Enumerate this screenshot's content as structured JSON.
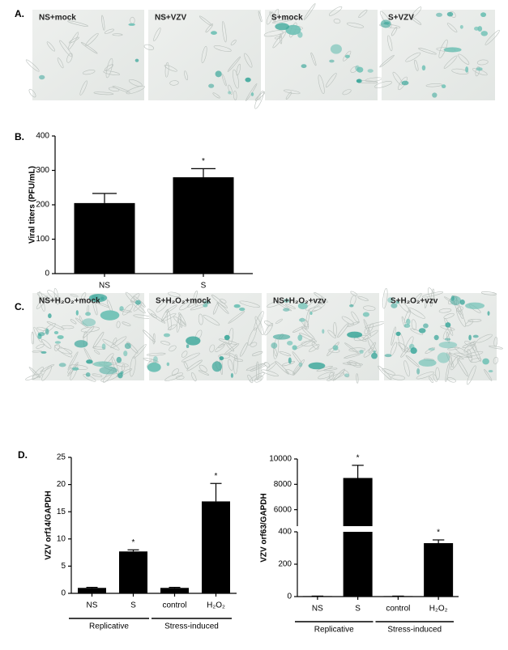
{
  "panels": [
    {
      "label": "A.",
      "images": [
        "NS+mock",
        "NS+VZV",
        "S+mock",
        "S+VZV"
      ]
    },
    {
      "label": "C.",
      "images": [
        "NS+H₂O₂+mock",
        "S+H₂O₂+mock",
        "NS+H₂O₂+vzv",
        "S+H₂O₂+vzv"
      ]
    }
  ],
  "chart_data": [
    {
      "type": "bar",
      "panel_label": "B.",
      "ylabel": "Viral titers  (PFU/mL)",
      "categories": [
        "NS",
        "S"
      ],
      "values": [
        205,
        280
      ],
      "errors": [
        28,
        25
      ],
      "value_annotations": [
        null,
        "*"
      ],
      "color": "#000000",
      "ylim": [
        0,
        400
      ],
      "yticks": [
        0,
        100,
        200,
        300,
        400
      ]
    },
    {
      "type": "bar",
      "panel_label": "D.",
      "ylabel": "VZV orf14/GAPDH",
      "categories": [
        "NS",
        "S",
        "control",
        "H₂O₂"
      ],
      "values": [
        1,
        7.7,
        1,
        16.9
      ],
      "errors": [
        0.1,
        0.3,
        0.1,
        3.3
      ],
      "value_annotations": [
        null,
        "*",
        null,
        "*"
      ],
      "category_groups": [
        "Replicative",
        "Replicative",
        "Stress-induced",
        "Stress-induced"
      ],
      "color": "#000000",
      "ylim": [
        0,
        25
      ],
      "yticks": [
        0,
        5,
        10,
        15,
        20,
        25
      ]
    },
    {
      "type": "bar",
      "ylabel": "VZV orf63/GAPDH",
      "categories": [
        "NS",
        "S",
        "control",
        "H₂O₂"
      ],
      "values": [
        3,
        8500,
        3,
        330
      ],
      "errors": [
        0,
        1000,
        0,
        20
      ],
      "value_annotations": [
        null,
        "*",
        null,
        "*"
      ],
      "category_groups": [
        "Replicative",
        "Replicative",
        "Stress-induced",
        "Stress-induced"
      ],
      "color": "#000000",
      "ylim": [
        0,
        10000
      ],
      "y_break": [
        400,
        4700
      ],
      "yticks": [
        0,
        200,
        400,
        6000,
        8000,
        10000
      ]
    }
  ]
}
